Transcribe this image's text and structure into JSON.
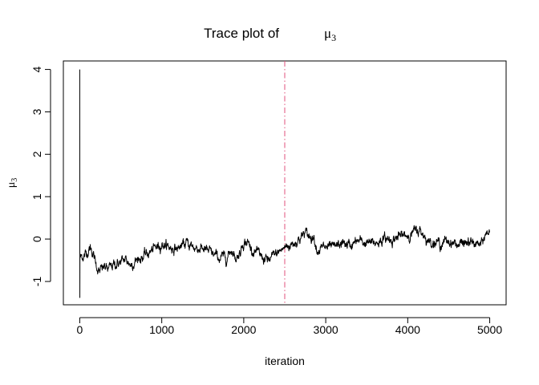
{
  "chart_data": {
    "type": "line",
    "title": "Trace plot of",
    "title_symbol": "μ",
    "title_subscript": "3",
    "xlabel": "iteration",
    "ylabel_symbol": "μ",
    "ylabel_subscript": "3",
    "xlim": [
      -200,
      5200
    ],
    "ylim": [
      -1.55,
      4.2
    ],
    "x_ticks": [
      0,
      1000,
      2000,
      3000,
      4000,
      5000
    ],
    "x_tick_labels": [
      "0",
      "1000",
      "2000",
      "3000",
      "4000",
      "5000"
    ],
    "y_ticks": [
      -1,
      0,
      1,
      2,
      3,
      4
    ],
    "y_tick_labels": [
      "-1",
      "0",
      "1",
      "2",
      "3",
      "4"
    ],
    "grid": false,
    "n_iterations": 5000,
    "series": [
      {
        "color": "#000000",
        "initial_values": [
          4.0,
          -1.38,
          -0.35,
          -0.45,
          -0.38,
          -0.42
        ],
        "trend_points": [
          [
            20,
            -0.42
          ],
          [
            60,
            -0.38
          ],
          [
            100,
            -0.28
          ],
          [
            130,
            -0.2
          ],
          [
            160,
            -0.32
          ],
          [
            200,
            -0.6
          ],
          [
            240,
            -0.78
          ],
          [
            300,
            -0.66
          ],
          [
            350,
            -0.72
          ],
          [
            420,
            -0.6
          ],
          [
            500,
            -0.55
          ],
          [
            560,
            -0.48
          ],
          [
            620,
            -0.6
          ],
          [
            700,
            -0.48
          ],
          [
            800,
            -0.38
          ],
          [
            900,
            -0.25
          ],
          [
            1000,
            -0.1
          ],
          [
            1100,
            -0.2
          ],
          [
            1200,
            -0.22
          ],
          [
            1300,
            -0.1
          ],
          [
            1400,
            -0.2
          ],
          [
            1500,
            -0.22
          ],
          [
            1600,
            -0.34
          ],
          [
            1700,
            -0.45
          ],
          [
            1800,
            -0.42
          ],
          [
            1850,
            -0.22
          ],
          [
            1900,
            -0.45
          ],
          [
            1950,
            -0.32
          ],
          [
            2000,
            -0.05
          ],
          [
            2050,
            -0.08
          ],
          [
            2100,
            -0.24
          ],
          [
            2200,
            -0.4
          ],
          [
            2300,
            -0.52
          ],
          [
            2400,
            -0.35
          ],
          [
            2500,
            -0.2
          ],
          [
            2600,
            -0.1
          ],
          [
            2700,
            0.05
          ],
          [
            2750,
            0.15
          ],
          [
            2800,
            0.05
          ],
          [
            2850,
            0.1
          ],
          [
            2900,
            -0.25
          ],
          [
            3000,
            -0.2
          ],
          [
            3100,
            -0.22
          ],
          [
            3200,
            -0.1
          ],
          [
            3300,
            -0.15
          ],
          [
            3400,
            -0.05
          ],
          [
            3500,
            -0.1
          ],
          [
            3600,
            -0.1
          ],
          [
            3700,
            0.0
          ],
          [
            3800,
            0.0
          ],
          [
            3900,
            0.05
          ],
          [
            4000,
            0.1
          ],
          [
            4100,
            0.18
          ],
          [
            4150,
            0.2
          ],
          [
            4200,
            0.1
          ],
          [
            4250,
            -0.05
          ],
          [
            4300,
            -0.05
          ],
          [
            4400,
            -0.1
          ],
          [
            4500,
            -0.05
          ],
          [
            4600,
            -0.12
          ],
          [
            4700,
            -0.1
          ],
          [
            4800,
            -0.1
          ],
          [
            4900,
            -0.15
          ],
          [
            4950,
            0.1
          ],
          [
            5000,
            0.2
          ]
        ],
        "noise_sd": 0.035
      }
    ],
    "reference_lines": [
      {
        "orientation": "vertical",
        "x": 2500,
        "color": "#e2517c",
        "style": "dash-dot"
      }
    ]
  }
}
